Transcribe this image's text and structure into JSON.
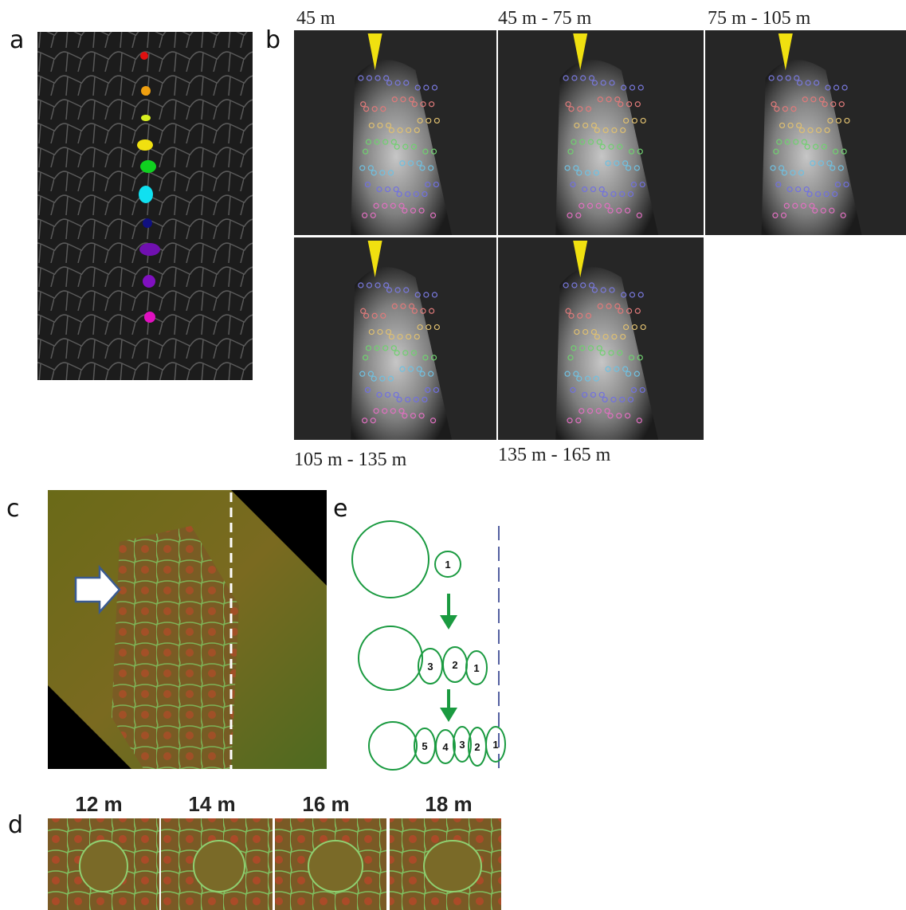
{
  "panels": {
    "a": {
      "label": "a"
    },
    "b": {
      "label": "b",
      "frames": [
        "45 m",
        "45 m - 75 m",
        "75 m - 105 m",
        "105 m - 135 m",
        "135 m - 165 m"
      ]
    },
    "c": {
      "label": "c"
    },
    "d": {
      "label": "d",
      "frames": [
        "12 m",
        "14 m",
        "16 m",
        "18 m"
      ]
    },
    "e": {
      "label": "e",
      "rows": [
        [
          "1"
        ],
        [
          "3",
          "2",
          "1"
        ],
        [
          "5",
          "4",
          "3",
          "2",
          "1"
        ]
      ]
    }
  }
}
